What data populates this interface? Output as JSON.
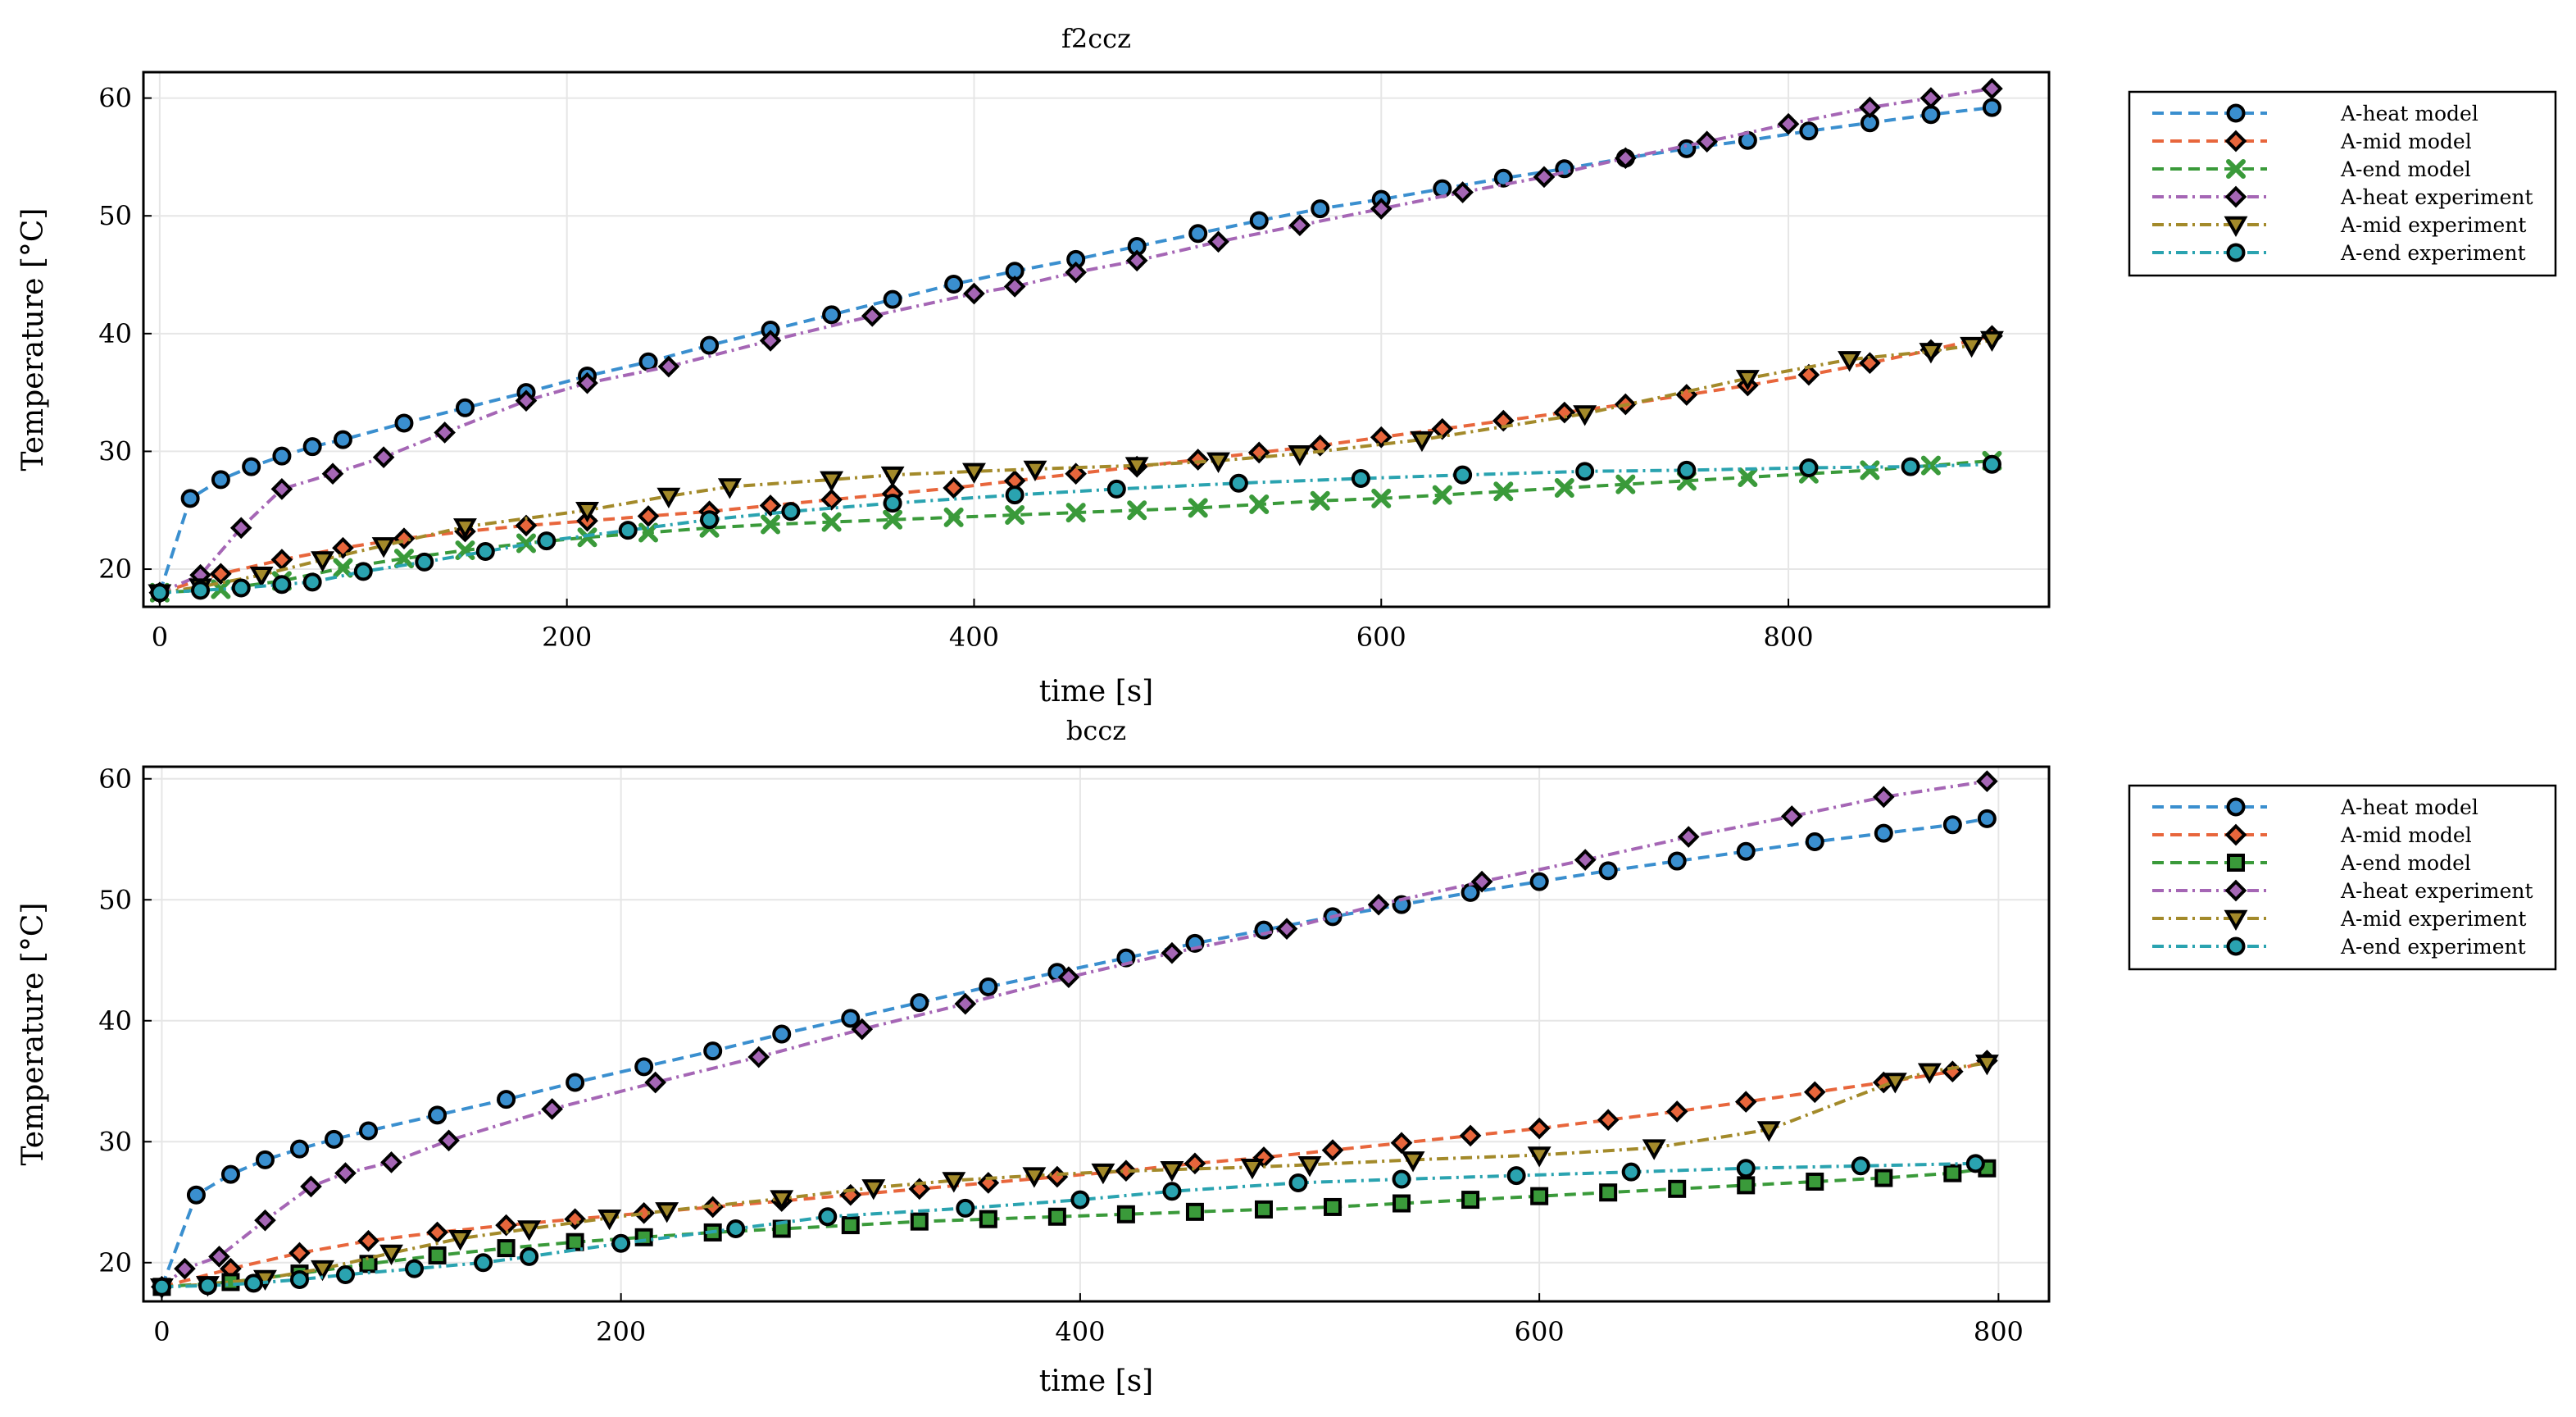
{
  "chart_data": [
    {
      "type": "line",
      "title": "f2ccz",
      "xlabel": "time [s]",
      "ylabel": "Temperature [°C]",
      "xlim": [
        -8,
        928
      ],
      "ylim": [
        16.8,
        62.2
      ],
      "xticks": [
        0,
        200,
        400,
        600,
        800
      ],
      "yticks": [
        20,
        30,
        40,
        50,
        60
      ],
      "grid": true,
      "legend": "outside-right-top",
      "series": [
        {
          "name": "A-heat model",
          "color": "#3a8fcf",
          "dash": "dash",
          "marker": "circle",
          "marker_step": 15,
          "x": [
            0,
            15,
            30,
            45,
            60,
            75,
            90,
            120,
            150,
            180,
            210,
            240,
            270,
            300,
            330,
            360,
            390,
            420,
            450,
            480,
            510,
            540,
            570,
            600,
            630,
            660,
            690,
            720,
            750,
            780,
            810,
            840,
            870,
            900
          ],
          "y": [
            18.0,
            26.0,
            27.6,
            28.7,
            29.6,
            30.4,
            31.0,
            32.4,
            33.7,
            35.0,
            36.4,
            37.6,
            39.0,
            40.3,
            41.6,
            42.9,
            44.2,
            45.3,
            46.3,
            47.4,
            48.5,
            49.6,
            50.6,
            51.4,
            52.3,
            53.2,
            54.0,
            54.9,
            55.7,
            56.4,
            57.2,
            57.9,
            58.6,
            59.2
          ]
        },
        {
          "name": "A-mid model",
          "color": "#e8663c",
          "dash": "dash",
          "marker": "diamond",
          "marker_step": 15,
          "x": [
            0,
            30,
            60,
            90,
            120,
            150,
            180,
            210,
            240,
            270,
            300,
            330,
            360,
            390,
            420,
            450,
            480,
            510,
            540,
            570,
            600,
            630,
            660,
            690,
            720,
            750,
            780,
            810,
            840,
            870,
            900
          ],
          "y": [
            18.0,
            19.6,
            20.8,
            21.8,
            22.6,
            23.2,
            23.7,
            24.1,
            24.5,
            24.9,
            25.4,
            25.9,
            26.4,
            26.9,
            27.5,
            28.1,
            28.7,
            29.3,
            29.9,
            30.5,
            31.2,
            31.9,
            32.6,
            33.3,
            34.0,
            34.8,
            35.6,
            36.5,
            37.5,
            38.6,
            39.8
          ]
        },
        {
          "name": "A-end model",
          "color": "#3a9a3a",
          "dash": "dash",
          "marker": "x",
          "marker_step": 15,
          "x": [
            0,
            30,
            60,
            90,
            120,
            150,
            180,
            210,
            240,
            270,
            300,
            330,
            360,
            390,
            420,
            450,
            480,
            510,
            540,
            570,
            600,
            630,
            660,
            690,
            720,
            750,
            780,
            810,
            840,
            870,
            900
          ],
          "y": [
            18.0,
            18.3,
            19.0,
            20.1,
            20.9,
            21.6,
            22.2,
            22.7,
            23.1,
            23.5,
            23.8,
            24.0,
            24.2,
            24.4,
            24.6,
            24.8,
            25.0,
            25.2,
            25.5,
            25.8,
            26.0,
            26.3,
            26.6,
            26.9,
            27.2,
            27.5,
            27.8,
            28.1,
            28.4,
            28.8,
            29.2
          ]
        },
        {
          "name": "A-heat experiment",
          "color": "#a566b5",
          "dash": "dashdot",
          "marker": "diamond",
          "marker_step": 1,
          "x": [
            0,
            20,
            40,
            60,
            85,
            110,
            140,
            180,
            210,
            250,
            300,
            350,
            400,
            420,
            450,
            480,
            520,
            560,
            600,
            640,
            680,
            720,
            760,
            800,
            840,
            870,
            900
          ],
          "y": [
            18.0,
            19.5,
            23.5,
            26.8,
            28.1,
            29.5,
            31.6,
            34.3,
            35.8,
            37.2,
            39.4,
            41.5,
            43.4,
            44.0,
            45.2,
            46.2,
            47.8,
            49.2,
            50.6,
            52.0,
            53.3,
            54.9,
            56.3,
            57.8,
            59.2,
            60.0,
            60.8
          ]
        },
        {
          "name": "A-mid experiment",
          "color": "#a38a2a",
          "dash": "dashdot",
          "marker": "triangle-down",
          "marker_step": 1,
          "x": [
            0,
            20,
            50,
            80,
            110,
            150,
            210,
            250,
            280,
            330,
            360,
            400,
            430,
            480,
            520,
            560,
            620,
            700,
            780,
            830,
            870,
            890,
            900
          ],
          "y": [
            18.0,
            18.5,
            19.5,
            20.8,
            22.0,
            23.6,
            25.0,
            26.2,
            27.0,
            27.6,
            28.0,
            28.3,
            28.5,
            28.8,
            29.2,
            29.8,
            31.0,
            33.2,
            36.2,
            37.8,
            38.5,
            39.0,
            39.5
          ]
        },
        {
          "name": "A-end experiment",
          "color": "#2aa3b0",
          "dash": "dashdot",
          "marker": "circle",
          "marker_step": 1,
          "x": [
            0,
            20,
            40,
            60,
            75,
            100,
            130,
            160,
            190,
            230,
            270,
            310,
            360,
            420,
            470,
            530,
            590,
            640,
            700,
            750,
            810,
            860,
            900
          ],
          "y": [
            18.0,
            18.2,
            18.4,
            18.7,
            18.9,
            19.8,
            20.6,
            21.5,
            22.4,
            23.3,
            24.2,
            24.9,
            25.6,
            26.3,
            26.8,
            27.3,
            27.7,
            28.0,
            28.3,
            28.4,
            28.6,
            28.7,
            28.9
          ]
        }
      ]
    },
    {
      "type": "line",
      "title": "bccz",
      "xlabel": "time [s]",
      "ylabel": "Temperature [°C]",
      "xlim": [
        -8,
        822
      ],
      "ylim": [
        16.8,
        61.0
      ],
      "xticks": [
        0,
        200,
        400,
        600,
        800
      ],
      "yticks": [
        20,
        30,
        40,
        50,
        60
      ],
      "grid": true,
      "legend": "outside-right-top",
      "series": [
        {
          "name": "A-heat model",
          "color": "#3a8fcf",
          "dash": "dash",
          "marker": "circle",
          "marker_step": 15,
          "x": [
            0,
            15,
            30,
            45,
            60,
            75,
            90,
            120,
            150,
            180,
            210,
            240,
            270,
            300,
            330,
            360,
            390,
            420,
            450,
            480,
            510,
            540,
            570,
            600,
            630,
            660,
            690,
            720,
            750,
            780,
            795
          ],
          "y": [
            18.0,
            25.6,
            27.3,
            28.5,
            29.4,
            30.2,
            30.9,
            32.2,
            33.5,
            34.9,
            36.2,
            37.5,
            38.9,
            40.2,
            41.5,
            42.8,
            44.0,
            45.2,
            46.4,
            47.5,
            48.6,
            49.6,
            50.6,
            51.5,
            52.4,
            53.2,
            54.0,
            54.8,
            55.5,
            56.2,
            56.7
          ]
        },
        {
          "name": "A-mid model",
          "color": "#e8663c",
          "dash": "dash",
          "marker": "diamond",
          "marker_step": 15,
          "x": [
            0,
            30,
            60,
            90,
            120,
            150,
            180,
            210,
            240,
            270,
            300,
            330,
            360,
            390,
            420,
            450,
            480,
            510,
            540,
            570,
            600,
            630,
            660,
            690,
            720,
            750,
            780,
            795
          ],
          "y": [
            18.0,
            19.5,
            20.8,
            21.8,
            22.5,
            23.1,
            23.6,
            24.1,
            24.6,
            25.1,
            25.6,
            26.1,
            26.6,
            27.1,
            27.6,
            28.2,
            28.7,
            29.3,
            29.9,
            30.5,
            31.1,
            31.8,
            32.5,
            33.3,
            34.1,
            34.9,
            35.8,
            36.7
          ]
        },
        {
          "name": "A-end model",
          "color": "#3a9a3a",
          "dash": "dash",
          "marker": "square",
          "marker_step": 15,
          "x": [
            0,
            30,
            60,
            90,
            120,
            150,
            180,
            210,
            240,
            270,
            300,
            330,
            360,
            390,
            420,
            450,
            480,
            510,
            540,
            570,
            600,
            630,
            660,
            690,
            720,
            750,
            780,
            795
          ],
          "y": [
            18.0,
            18.4,
            19.1,
            19.9,
            20.6,
            21.2,
            21.7,
            22.1,
            22.5,
            22.8,
            23.1,
            23.4,
            23.6,
            23.8,
            24.0,
            24.2,
            24.4,
            24.6,
            24.9,
            25.2,
            25.5,
            25.8,
            26.1,
            26.4,
            26.7,
            27.0,
            27.4,
            27.8
          ]
        },
        {
          "name": "A-heat experiment",
          "color": "#a566b5",
          "dash": "dashdot",
          "marker": "diamond",
          "marker_step": 1,
          "x": [
            0,
            10,
            25,
            45,
            65,
            80,
            100,
            125,
            170,
            215,
            260,
            305,
            350,
            395,
            440,
            490,
            530,
            575,
            620,
            665,
            710,
            750,
            795
          ],
          "y": [
            18.0,
            19.5,
            20.5,
            23.5,
            26.3,
            27.4,
            28.3,
            30.1,
            32.7,
            34.9,
            37.0,
            39.3,
            41.4,
            43.6,
            45.6,
            47.6,
            49.6,
            51.5,
            53.3,
            55.2,
            56.9,
            58.5,
            59.8
          ]
        },
        {
          "name": "A-mid experiment",
          "color": "#a38a2a",
          "dash": "dashdot",
          "marker": "triangle-down",
          "marker_step": 1,
          "x": [
            0,
            20,
            45,
            70,
            100,
            130,
            160,
            195,
            220,
            270,
            310,
            345,
            380,
            410,
            440,
            475,
            500,
            545,
            600,
            650,
            700,
            755,
            770,
            795
          ],
          "y": [
            18.0,
            18.2,
            18.7,
            19.5,
            20.8,
            22.0,
            22.8,
            23.7,
            24.3,
            25.3,
            26.2,
            26.8,
            27.2,
            27.5,
            27.7,
            27.9,
            28.1,
            28.5,
            28.9,
            29.5,
            31.0,
            35.0,
            35.8,
            36.5
          ]
        },
        {
          "name": "A-end experiment",
          "color": "#2aa3b0",
          "dash": "dashdot",
          "marker": "circle",
          "marker_step": 1,
          "x": [
            0,
            20,
            40,
            60,
            80,
            110,
            140,
            160,
            200,
            250,
            290,
            350,
            400,
            440,
            495,
            540,
            590,
            640,
            690,
            740,
            790
          ],
          "y": [
            18.0,
            18.1,
            18.3,
            18.6,
            19.0,
            19.5,
            20.0,
            20.5,
            21.6,
            22.8,
            23.8,
            24.5,
            25.2,
            25.9,
            26.6,
            26.9,
            27.2,
            27.5,
            27.8,
            28.0,
            28.2
          ]
        }
      ]
    }
  ]
}
